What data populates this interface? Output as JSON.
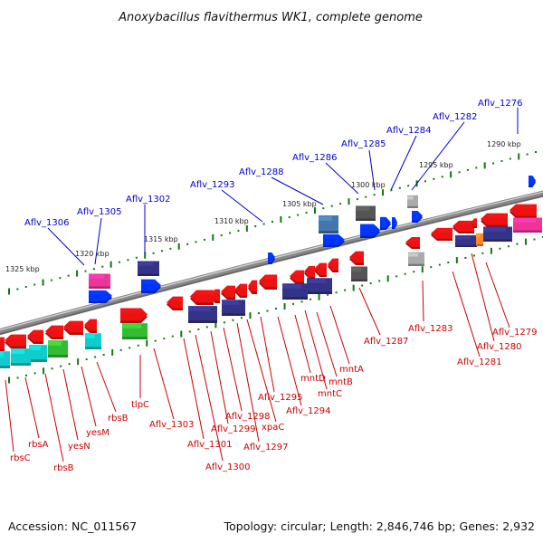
{
  "title": "Anoxybacillus flavithermus WK1, complete genome",
  "footer": {
    "accession": "Accession: NC_011567",
    "summary": "Topology: circular; Length: 2,846,746 bp; Genes: 2,932"
  },
  "colors": {
    "backbone": "#8a8a8a",
    "top_label": "#0000cc",
    "bottom_label": "#cc0000",
    "tick": "#117711",
    "red_gene": "#ee1111",
    "blue_gene": "#0033ff",
    "magenta_gene": "#ee3399",
    "cyan_gene": "#11cccc",
    "green_gene": "#33bb33",
    "navy_gene": "#333388",
    "gray_gene": "#aaaaaa",
    "dark_gray_gene": "#555555",
    "steel_gene": "#4477aa"
  },
  "kbp_labels": [
    "1290 kbp",
    "1295 kbp",
    "1300 kbp",
    "1305 kbp",
    "1310 kbp",
    "1315 kbp",
    "1320 kbp",
    "1325 kbp"
  ],
  "top_labels": [
    "Aflv_1276",
    "Aflv_1282",
    "Aflv_1284",
    "Aflv_1285",
    "Aflv_1286",
    "Aflv_1288",
    "Aflv_1293",
    "Aflv_1302",
    "Aflv_1305",
    "Aflv_1306"
  ],
  "bottom_labels": [
    "Aflv_1279",
    "Aflv_1280",
    "Aflv_1281",
    "Aflv_1283",
    "Aflv_1287",
    "mntA",
    "mntB",
    "mntC",
    "mntD",
    "Aflv_1294",
    "Aflv_1295",
    "xpaC",
    "Aflv_1297",
    "Aflv_1298",
    "Aflv_1299",
    "Aflv_1300",
    "Aflv_1301",
    "Aflv_1303",
    "tlpC",
    "rbsB",
    "yesM",
    "yesN",
    "rbsB",
    "rbsA",
    "rbsC"
  ]
}
